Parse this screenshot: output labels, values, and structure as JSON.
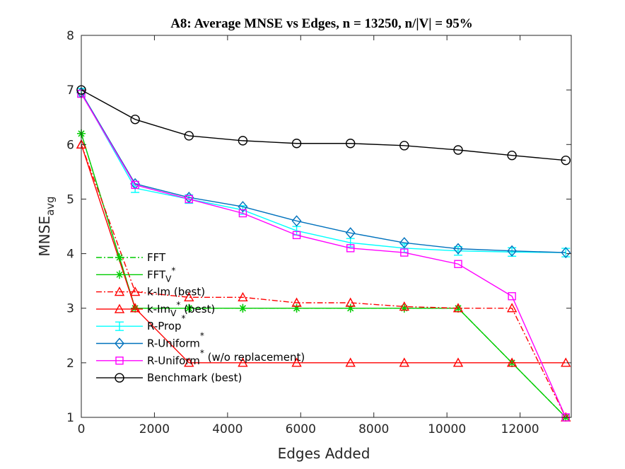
{
  "chart_data": {
    "type": "line",
    "title": "A8: Average MNSE vs Edges, n = 13250, n/|V| = 95%",
    "xlabel": "Edges Added",
    "ylabel_main": "MNSE",
    "ylabel_sub": "avg",
    "xlim": [
      0,
      13400
    ],
    "ylim": [
      1,
      8
    ],
    "xticks": [
      0,
      2000,
      4000,
      6000,
      8000,
      10000,
      12000
    ],
    "yticks": [
      1,
      2,
      3,
      4,
      5,
      6,
      7,
      8
    ],
    "grid": false,
    "legend_position": "lower-left",
    "series": [
      {
        "name": "FFT",
        "name_sup": "",
        "name_sub": "",
        "name_suffix": "",
        "color": "#00cc00",
        "dash": "8,3,2,3",
        "marker": "star",
        "x": [
          0,
          1472,
          2944,
          4417,
          5889,
          7361,
          8833,
          10306,
          11778,
          13250
        ],
        "y": [
          6.2,
          3.0,
          3.0,
          3.0,
          3.0,
          3.0,
          3.0,
          3.0,
          2.0,
          1.0
        ]
      },
      {
        "name": "FFT",
        "name_sup": "*",
        "name_sub": "V",
        "name_suffix": "",
        "color": "#00cc00",
        "dash": "",
        "marker": "star",
        "x": [
          0,
          1472,
          2944,
          4417,
          5889,
          7361,
          8833,
          10306,
          11778,
          13250
        ],
        "y": [
          6.2,
          3.0,
          3.0,
          3.0,
          3.0,
          3.0,
          3.0,
          3.0,
          2.0,
          1.0
        ]
      },
      {
        "name": "k-Im (best)",
        "name_sup": "",
        "name_sub": "",
        "name_suffix": "",
        "color": "#ff0000",
        "dash": "8,3,2,3",
        "marker": "triangle",
        "x": [
          0,
          1472,
          2944,
          4417,
          5889,
          7361,
          8833,
          10306,
          11778,
          13250
        ],
        "y": [
          6.0,
          3.3,
          3.2,
          3.2,
          3.1,
          3.1,
          3.03,
          3.0,
          3.0,
          1.0
        ]
      },
      {
        "name": "k-Im",
        "name_sup": "*",
        "name_sub": "V",
        "name_suffix": " (best)",
        "color": "#ff0000",
        "dash": "",
        "marker": "triangle",
        "x": [
          0,
          1472,
          2944,
          4417,
          5889,
          7361,
          8833,
          10306,
          11778,
          13250
        ],
        "y": [
          6.0,
          3.0,
          2.0,
          2.0,
          2.0,
          2.0,
          2.0,
          2.0,
          2.0,
          2.0
        ]
      },
      {
        "name": "R-Prop",
        "name_sup": "*",
        "name_sub": "",
        "name_suffix": "",
        "color": "#00ffff",
        "dash": "",
        "marker": "errbar",
        "x": [
          0,
          1472,
          2944,
          4417,
          5889,
          7361,
          8833,
          10306,
          11778,
          13250
        ],
        "y": [
          6.95,
          5.2,
          5.0,
          4.8,
          4.42,
          4.2,
          4.1,
          4.05,
          4.03,
          4.02
        ]
      },
      {
        "name": "R-Uniform",
        "name_sup": "*",
        "name_sub": "",
        "name_suffix": "",
        "color": "#0072bd",
        "dash": "",
        "marker": "diamond",
        "x": [
          0,
          1472,
          2944,
          4417,
          5889,
          7361,
          8833,
          10306,
          11778,
          13250
        ],
        "y": [
          6.95,
          5.28,
          5.03,
          4.86,
          4.6,
          4.38,
          4.2,
          4.09,
          4.05,
          4.02
        ]
      },
      {
        "name": "R-Uniform",
        "name_sup": "*",
        "name_sub": "",
        "name_suffix": " (w/o replacement)",
        "color": "#ff00ff",
        "dash": "",
        "marker": "square",
        "x": [
          0,
          1472,
          2944,
          4417,
          5889,
          7361,
          8833,
          10306,
          11778,
          13250
        ],
        "y": [
          6.93,
          5.26,
          5.0,
          4.74,
          4.34,
          4.1,
          4.02,
          3.81,
          3.22,
          1.0
        ]
      },
      {
        "name": "Benchmark (best)",
        "name_sup": "",
        "name_sub": "",
        "name_suffix": "",
        "color": "#000000",
        "dash": "",
        "marker": "circle",
        "x": [
          0,
          1472,
          2944,
          4417,
          5889,
          7361,
          8833,
          10306,
          11778,
          13250
        ],
        "y": [
          7.0,
          6.46,
          6.16,
          6.07,
          6.02,
          6.02,
          5.98,
          5.9,
          5.8,
          5.71
        ]
      }
    ]
  }
}
